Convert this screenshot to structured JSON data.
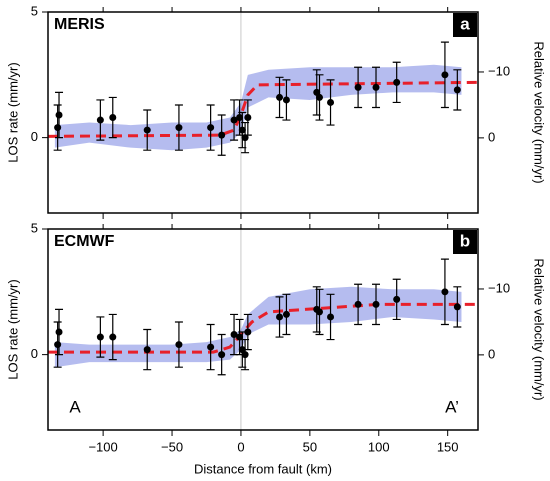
{
  "chart_data": [
    {
      "type": "scatter",
      "title": "MERIS",
      "panel_label": "a",
      "ylabel": "LOS rate (mm/yr)",
      "y2label": "Relative velocity (mm/yr)",
      "xlim": [
        -140,
        172
      ],
      "xticks": [
        -100,
        -50,
        0,
        50,
        100,
        150
      ],
      "ylim": [
        -3,
        5
      ],
      "yticks": [
        0,
        5
      ],
      "y2lim": [
        11.4,
        -19.1
      ],
      "y2ticks": [
        0,
        {
          "value": -10,
          "label": "−10"
        }
      ],
      "cloud": {
        "color": "#2a3fd0",
        "x": [
          -135,
          -110,
          -80,
          -50,
          -25,
          -8,
          0,
          5,
          20,
          50,
          80,
          110,
          140,
          160
        ],
        "lower": [
          -0.4,
          -0.2,
          -0.4,
          -0.5,
          -0.4,
          -0.2,
          0.2,
          1.2,
          1.6,
          1.5,
          1.7,
          1.8,
          1.8,
          1.7
        ],
        "upper": [
          0.5,
          0.6,
          0.5,
          0.6,
          0.6,
          0.8,
          1.4,
          2.5,
          2.7,
          2.8,
          2.8,
          2.8,
          2.9,
          2.8
        ]
      },
      "model": {
        "color": "#e8202a",
        "x": [
          -140,
          -15,
          -5,
          0,
          5,
          12,
          172
        ],
        "values": [
          0.05,
          0.1,
          0.3,
          0.9,
          1.7,
          2.1,
          2.2
        ]
      },
      "points": {
        "color": "#000000",
        "x": [
          -133,
          -132,
          -102,
          -93,
          -68,
          -45,
          -22,
          -14,
          -5,
          -1,
          1,
          3,
          5,
          28,
          33,
          55,
          57,
          65,
          85,
          98,
          113,
          148,
          157
        ],
        "values": [
          0.4,
          0.9,
          0.7,
          0.8,
          0.3,
          0.4,
          0.4,
          0.1,
          0.7,
          0.8,
          0.3,
          0.0,
          0.8,
          1.6,
          1.5,
          1.8,
          1.6,
          1.4,
          2.0,
          2.0,
          2.2,
          2.5,
          1.9
        ],
        "errors": [
          0.9,
          0.9,
          0.8,
          0.8,
          0.8,
          0.9,
          0.9,
          0.8,
          0.8,
          0.7,
          0.7,
          0.6,
          0.7,
          0.8,
          0.8,
          0.9,
          0.9,
          0.9,
          0.8,
          0.8,
          0.8,
          1.3,
          0.8
        ]
      }
    },
    {
      "type": "scatter",
      "title": "ECMWF",
      "panel_label": "b",
      "ylabel": "LOS rate (mm/yr)",
      "y2label": "Relative velocity (mm/yr)",
      "xlabel": "Distance from fault (km)",
      "left_note": "A",
      "right_note": "A’",
      "xlim": [
        -140,
        172
      ],
      "xticks": [
        {
          "value": -100,
          "label": "−100"
        },
        {
          "value": -50,
          "label": "−50"
        },
        0,
        50,
        100,
        150
      ],
      "ylim": [
        -3,
        5
      ],
      "yticks": [
        0,
        5
      ],
      "y2lim": [
        11.4,
        -19.1
      ],
      "y2ticks": [
        0,
        {
          "value": -10,
          "label": "−10"
        }
      ],
      "cloud": {
        "color": "#2a3fd0",
        "x": [
          -135,
          -110,
          -80,
          -50,
          -25,
          -8,
          0,
          5,
          20,
          50,
          80,
          110,
          140,
          160
        ],
        "lower": [
          -0.5,
          -0.3,
          -0.3,
          -0.3,
          -0.3,
          -0.2,
          0.2,
          0.8,
          1.2,
          1.2,
          1.3,
          1.5,
          1.4,
          1.3
        ],
        "upper": [
          0.5,
          0.4,
          0.4,
          0.4,
          0.5,
          0.7,
          1.0,
          1.6,
          2.3,
          2.6,
          2.7,
          2.6,
          2.6,
          2.5
        ]
      },
      "model": {
        "color": "#e8202a",
        "x": [
          -140,
          -20,
          -8,
          0,
          8,
          20,
          100,
          172
        ],
        "values": [
          0.1,
          0.1,
          0.3,
          0.8,
          1.3,
          1.7,
          2.0,
          2.0
        ]
      },
      "points": {
        "color": "#000000",
        "x": [
          -133,
          -132,
          -102,
          -93,
          -68,
          -45,
          -22,
          -14,
          -5,
          -1,
          1,
          3,
          5,
          28,
          33,
          55,
          57,
          65,
          85,
          98,
          113,
          148,
          157
        ],
        "values": [
          0.4,
          0.9,
          0.7,
          0.7,
          0.2,
          0.4,
          0.3,
          0.0,
          0.8,
          0.7,
          0.2,
          0.0,
          0.9,
          1.5,
          1.6,
          1.8,
          1.7,
          1.5,
          2.0,
          2.0,
          2.2,
          2.5,
          1.9
        ],
        "errors": [
          0.9,
          0.9,
          0.8,
          0.9,
          0.8,
          0.9,
          0.9,
          0.8,
          0.8,
          0.7,
          0.7,
          0.6,
          0.7,
          0.8,
          0.8,
          0.9,
          0.9,
          0.9,
          0.8,
          0.8,
          0.8,
          1.3,
          0.8
        ]
      }
    }
  ]
}
